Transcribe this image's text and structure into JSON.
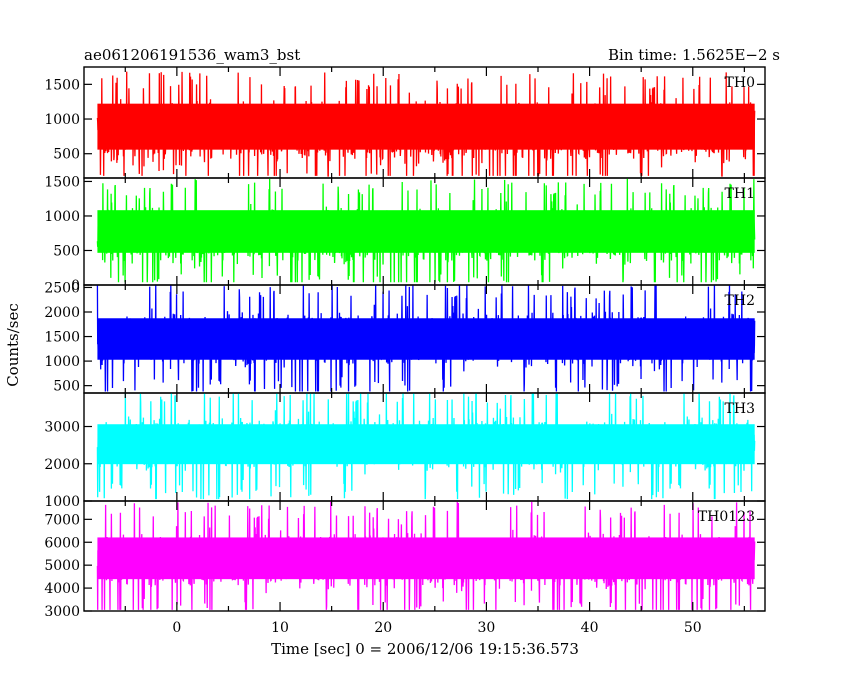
{
  "header": {
    "title": "ae061206191536_wam3_bst",
    "bin_time": "Bin time: 1.5625E−2 s"
  },
  "axes": {
    "ylabel": "Counts/sec",
    "xlabel": "Time [sec] 0 = 2006/12/06 19:15:36.573"
  },
  "chart_data": {
    "type": "line",
    "title": "ae061206191536_wam3_bst",
    "subtitle": "Bin time: 1.5625E−2 s",
    "xlabel": "Time [sec] 0 = 2006/12/06 19:15:36.573",
    "ylabel": "Counts/sec",
    "xlim": [
      -9,
      57
    ],
    "xticks": [
      0,
      10,
      20,
      30,
      40,
      50
    ],
    "xtick_labels": [
      "0",
      "10",
      "20",
      "30",
      "40",
      "50"
    ],
    "data_x_range": [
      -7.7,
      56
    ],
    "grid": false,
    "panels": [
      {
        "name": "TH0",
        "color": "#ff0000",
        "ylim": [
          150,
          1750
        ],
        "yticks": [
          500,
          1000,
          1500
        ],
        "ytick_labels": [
          "500",
          "1000",
          "1500"
        ],
        "median": 820,
        "band": [
          380,
          1400
        ],
        "range": [
          180,
          1750
        ]
      },
      {
        "name": "TH1",
        "color": "#00ff00",
        "ylim": [
          0,
          1550
        ],
        "yticks": [
          0,
          500,
          1000,
          1500
        ],
        "ytick_labels": [
          "0",
          "500",
          "1000",
          "1500"
        ],
        "median": 720,
        "band": [
          300,
          1250
        ],
        "range": [
          40,
          1550
        ]
      },
      {
        "name": "TH2",
        "color": "#0000ff",
        "ylim": [
          350,
          2550
        ],
        "yticks": [
          500,
          1000,
          1500,
          2000,
          2500
        ],
        "ytick_labels": [
          "500",
          "1000",
          "1500",
          "2000",
          "2500"
        ],
        "median": 1450,
        "band": [
          800,
          2100
        ],
        "range": [
          380,
          2550
        ]
      },
      {
        "name": "TH3",
        "color": "#00ffff",
        "ylim": [
          1000,
          3900
        ],
        "yticks": [
          1000,
          2000,
          3000
        ],
        "ytick_labels": [
          "1000",
          "2000",
          "3000"
        ],
        "median": 2550,
        "band": [
          1700,
          3350
        ],
        "range": [
          1050,
          3900
        ]
      },
      {
        "name": "TH0123",
        "color": "#ff00ff",
        "ylim": [
          3000,
          7800
        ],
        "yticks": [
          3000,
          4000,
          5000,
          6000,
          7000
        ],
        "ytick_labels": [
          "3000",
          "4000",
          "5000",
          "6000",
          "7000"
        ],
        "median": 5200,
        "band": [
          3900,
          6700
        ],
        "range": [
          3050,
          7800
        ]
      }
    ]
  }
}
